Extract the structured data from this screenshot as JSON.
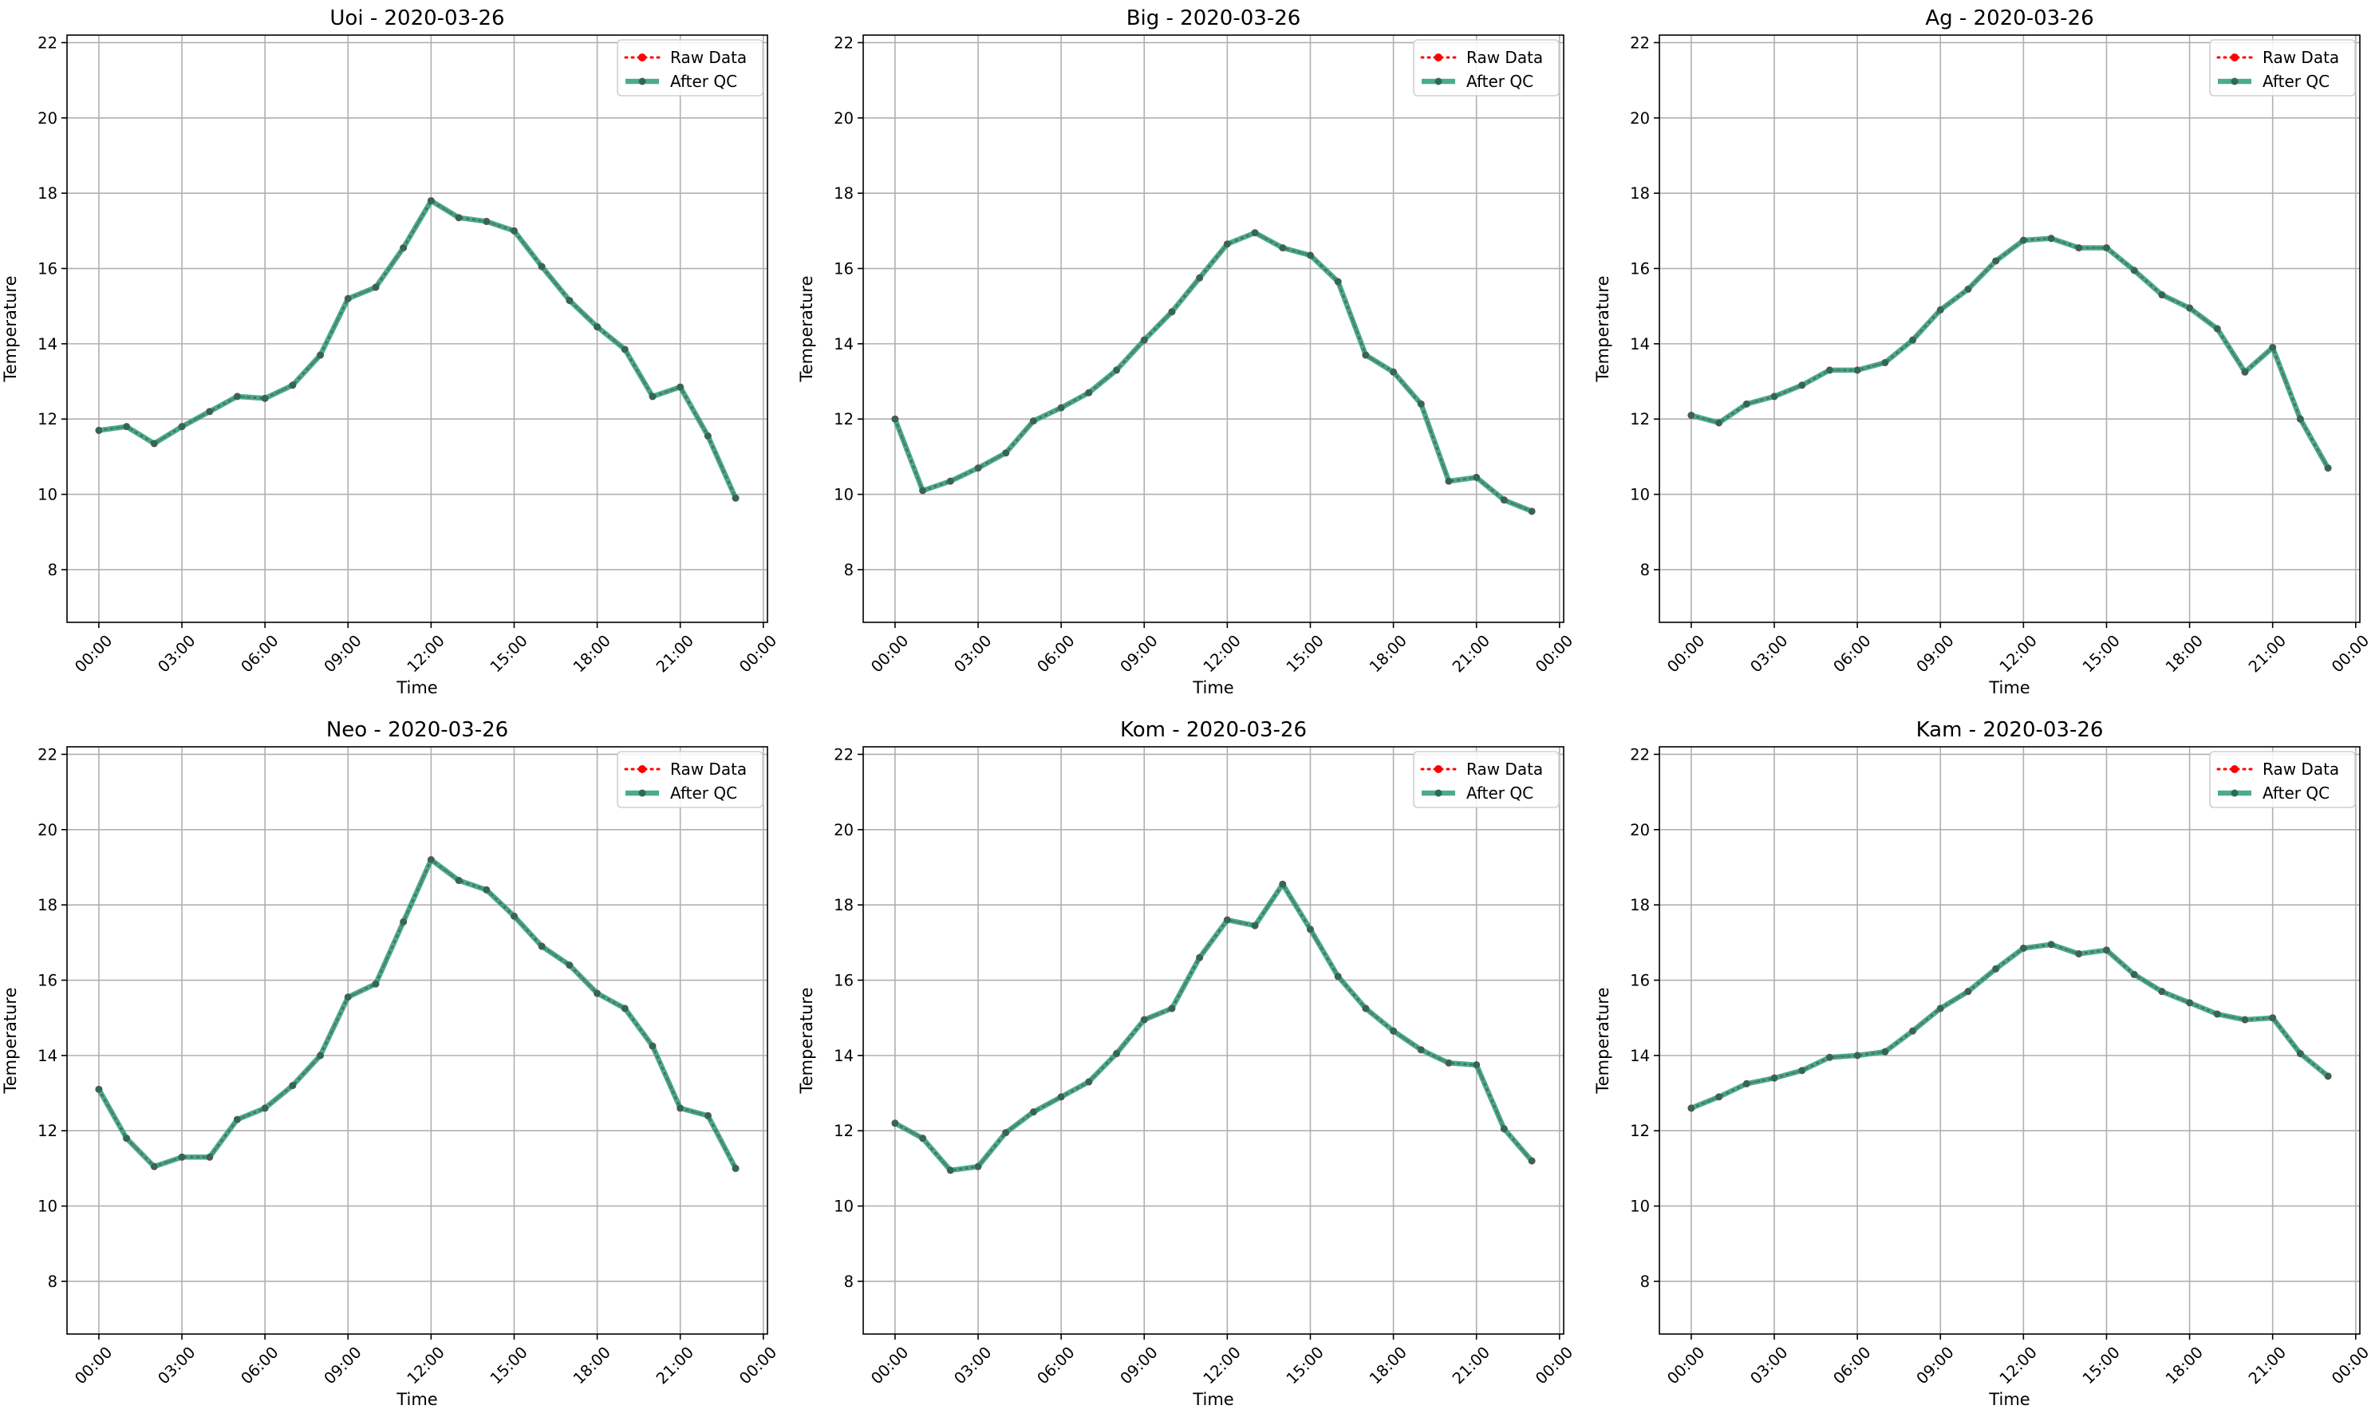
{
  "figure": {
    "colors": {
      "raw": "#ff0000",
      "qc": "#2a9d78",
      "qc_marker": "#2b6b55",
      "grid": "#b0b0b0",
      "axes": "#000000"
    }
  },
  "chart_data": [
    {
      "type": "line",
      "title": "Uoi - 2020-03-26",
      "xlabel": "Time",
      "ylabel": "Temperature",
      "ylim": [
        6.6,
        22.2
      ],
      "yticks": [
        8,
        10,
        12,
        14,
        16,
        18,
        20,
        22
      ],
      "xlim": [
        "2020-03-25 22:51",
        "2020-03-27 00:09"
      ],
      "xticks": [
        "00:00",
        "03:00",
        "06:00",
        "09:00",
        "12:00",
        "15:00",
        "18:00",
        "21:00",
        "00:00"
      ],
      "grid": true,
      "legend": "top-right",
      "x": [
        "00:00",
        "01:00",
        "02:00",
        "03:00",
        "04:00",
        "05:00",
        "06:00",
        "07:00",
        "08:00",
        "09:00",
        "10:00",
        "11:00",
        "12:00",
        "13:00",
        "14:00",
        "15:00",
        "16:00",
        "17:00",
        "18:00",
        "19:00",
        "20:00",
        "21:00",
        "22:00",
        "23:00"
      ],
      "series": [
        {
          "name": "Raw Data",
          "values": [
            11.7,
            11.8,
            11.35,
            11.8,
            12.2,
            12.6,
            12.55,
            12.9,
            13.7,
            15.2,
            15.5,
            16.55,
            17.8,
            17.35,
            17.25,
            17.0,
            16.05,
            15.15,
            14.45,
            13.85,
            12.6,
            12.85,
            11.55,
            9.9
          ]
        },
        {
          "name": "After QC",
          "values": [
            11.7,
            11.8,
            11.35,
            11.8,
            12.2,
            12.6,
            12.55,
            12.9,
            13.7,
            15.2,
            15.5,
            16.55,
            17.8,
            17.35,
            17.25,
            17.0,
            16.05,
            15.15,
            14.45,
            13.85,
            12.6,
            12.85,
            11.55,
            9.9
          ]
        }
      ]
    },
    {
      "type": "line",
      "title": "Big - 2020-03-26",
      "xlabel": "Time",
      "ylabel": "Temperature",
      "ylim": [
        6.6,
        22.2
      ],
      "yticks": [
        8,
        10,
        12,
        14,
        16,
        18,
        20,
        22
      ],
      "xlim": [
        "2020-03-25 22:51",
        "2020-03-27 00:09"
      ],
      "xticks": [
        "00:00",
        "03:00",
        "06:00",
        "09:00",
        "12:00",
        "15:00",
        "18:00",
        "21:00",
        "00:00"
      ],
      "grid": true,
      "legend": "top-right",
      "x": [
        "00:00",
        "01:00",
        "02:00",
        "03:00",
        "04:00",
        "05:00",
        "06:00",
        "07:00",
        "08:00",
        "09:00",
        "10:00",
        "11:00",
        "12:00",
        "13:00",
        "14:00",
        "15:00",
        "16:00",
        "17:00",
        "18:00",
        "19:00",
        "20:00",
        "21:00",
        "22:00",
        "23:00"
      ],
      "series": [
        {
          "name": "Raw Data",
          "values": [
            12.0,
            10.1,
            10.35,
            10.7,
            11.1,
            11.95,
            12.3,
            12.7,
            13.3,
            14.1,
            14.85,
            15.75,
            16.65,
            16.95,
            16.55,
            16.35,
            15.65,
            13.7,
            13.25,
            12.4,
            10.35,
            10.45,
            9.85,
            9.55
          ]
        },
        {
          "name": "After QC",
          "values": [
            12.0,
            10.1,
            10.35,
            10.7,
            11.1,
            11.95,
            12.3,
            12.7,
            13.3,
            14.1,
            14.85,
            15.75,
            16.65,
            16.95,
            16.55,
            16.35,
            15.65,
            13.7,
            13.25,
            12.4,
            10.35,
            10.45,
            9.85,
            9.55
          ]
        }
      ]
    },
    {
      "type": "line",
      "title": "Ag - 2020-03-26",
      "xlabel": "Time",
      "ylabel": "Temperature",
      "ylim": [
        6.6,
        22.2
      ],
      "yticks": [
        8,
        10,
        12,
        14,
        16,
        18,
        20,
        22
      ],
      "xlim": [
        "2020-03-25 22:51",
        "2020-03-27 00:09"
      ],
      "xticks": [
        "00:00",
        "03:00",
        "06:00",
        "09:00",
        "12:00",
        "15:00",
        "18:00",
        "21:00",
        "00:00"
      ],
      "grid": true,
      "legend": "top-right",
      "x": [
        "00:00",
        "01:00",
        "02:00",
        "03:00",
        "04:00",
        "05:00",
        "06:00",
        "07:00",
        "08:00",
        "09:00",
        "10:00",
        "11:00",
        "12:00",
        "13:00",
        "14:00",
        "15:00",
        "16:00",
        "17:00",
        "18:00",
        "19:00",
        "20:00",
        "21:00",
        "22:00",
        "23:00"
      ],
      "series": [
        {
          "name": "Raw Data",
          "values": [
            12.1,
            11.9,
            12.4,
            12.6,
            12.9,
            13.3,
            13.3,
            13.5,
            14.1,
            14.9,
            15.45,
            16.2,
            16.75,
            16.8,
            16.55,
            16.55,
            15.95,
            15.3,
            14.95,
            14.4,
            13.25,
            13.9,
            12.0,
            10.7
          ]
        },
        {
          "name": "After QC",
          "values": [
            12.1,
            11.9,
            12.4,
            12.6,
            12.9,
            13.3,
            13.3,
            13.5,
            14.1,
            14.9,
            15.45,
            16.2,
            16.75,
            16.8,
            16.55,
            16.55,
            15.95,
            15.3,
            14.95,
            14.4,
            13.25,
            13.9,
            12.0,
            10.7
          ]
        }
      ]
    },
    {
      "type": "line",
      "title": "Neo - 2020-03-26",
      "xlabel": "Time",
      "ylabel": "Temperature",
      "ylim": [
        6.6,
        22.2
      ],
      "yticks": [
        8,
        10,
        12,
        14,
        16,
        18,
        20,
        22
      ],
      "xlim": [
        "2020-03-25 22:51",
        "2020-03-27 00:09"
      ],
      "xticks": [
        "00:00",
        "03:00",
        "06:00",
        "09:00",
        "12:00",
        "15:00",
        "18:00",
        "21:00",
        "00:00"
      ],
      "grid": true,
      "legend": "top-right",
      "x": [
        "00:00",
        "01:00",
        "02:00",
        "03:00",
        "04:00",
        "05:00",
        "06:00",
        "07:00",
        "08:00",
        "09:00",
        "10:00",
        "11:00",
        "12:00",
        "13:00",
        "14:00",
        "15:00",
        "16:00",
        "17:00",
        "18:00",
        "19:00",
        "20:00",
        "21:00",
        "22:00",
        "23:00"
      ],
      "series": [
        {
          "name": "Raw Data",
          "values": [
            13.1,
            11.8,
            11.05,
            11.3,
            11.3,
            12.3,
            12.6,
            13.2,
            14.0,
            15.55,
            15.9,
            17.55,
            19.2,
            18.65,
            18.4,
            17.7,
            16.9,
            16.4,
            15.65,
            15.25,
            14.25,
            12.6,
            12.4,
            11.0
          ]
        },
        {
          "name": "After QC",
          "values": [
            13.1,
            11.8,
            11.05,
            11.3,
            11.3,
            12.3,
            12.6,
            13.2,
            14.0,
            15.55,
            15.9,
            17.55,
            19.2,
            18.65,
            18.4,
            17.7,
            16.9,
            16.4,
            15.65,
            15.25,
            14.25,
            12.6,
            12.4,
            11.0
          ]
        }
      ]
    },
    {
      "type": "line",
      "title": "Kom - 2020-03-26",
      "xlabel": "Time",
      "ylabel": "Temperature",
      "ylim": [
        6.6,
        22.2
      ],
      "yticks": [
        8,
        10,
        12,
        14,
        16,
        18,
        20,
        22
      ],
      "xlim": [
        "2020-03-25 22:51",
        "2020-03-27 00:09"
      ],
      "xticks": [
        "00:00",
        "03:00",
        "06:00",
        "09:00",
        "12:00",
        "15:00",
        "18:00",
        "21:00",
        "00:00"
      ],
      "grid": true,
      "legend": "top-right",
      "x": [
        "00:00",
        "01:00",
        "02:00",
        "03:00",
        "04:00",
        "05:00",
        "06:00",
        "07:00",
        "08:00",
        "09:00",
        "10:00",
        "11:00",
        "12:00",
        "13:00",
        "14:00",
        "15:00",
        "16:00",
        "17:00",
        "18:00",
        "19:00",
        "20:00",
        "21:00",
        "22:00",
        "23:00"
      ],
      "series": [
        {
          "name": "Raw Data",
          "values": [
            12.2,
            11.8,
            10.95,
            11.05,
            11.95,
            12.5,
            12.9,
            13.3,
            14.05,
            14.95,
            15.25,
            16.6,
            17.6,
            17.45,
            18.55,
            17.35,
            16.1,
            15.25,
            14.65,
            14.15,
            13.8,
            13.75,
            12.05,
            11.2
          ]
        },
        {
          "name": "After QC",
          "values": [
            12.2,
            11.8,
            10.95,
            11.05,
            11.95,
            12.5,
            12.9,
            13.3,
            14.05,
            14.95,
            15.25,
            16.6,
            17.6,
            17.45,
            18.55,
            17.35,
            16.1,
            15.25,
            14.65,
            14.15,
            13.8,
            13.75,
            12.05,
            11.2
          ]
        }
      ]
    },
    {
      "type": "line",
      "title": "Kam - 2020-03-26",
      "xlabel": "Time",
      "ylabel": "Temperature",
      "ylim": [
        6.6,
        22.2
      ],
      "yticks": [
        8,
        10,
        12,
        14,
        16,
        18,
        20,
        22
      ],
      "xlim": [
        "2020-03-25 22:51",
        "2020-03-27 00:09"
      ],
      "xticks": [
        "00:00",
        "03:00",
        "06:00",
        "09:00",
        "12:00",
        "15:00",
        "18:00",
        "21:00",
        "00:00"
      ],
      "grid": true,
      "legend": "top-right",
      "x": [
        "00:00",
        "01:00",
        "02:00",
        "03:00",
        "04:00",
        "05:00",
        "06:00",
        "07:00",
        "08:00",
        "09:00",
        "10:00",
        "11:00",
        "12:00",
        "13:00",
        "14:00",
        "15:00",
        "16:00",
        "17:00",
        "18:00",
        "19:00",
        "20:00",
        "21:00",
        "22:00",
        "23:00"
      ],
      "series": [
        {
          "name": "Raw Data",
          "values": [
            12.6,
            12.9,
            13.25,
            13.4,
            13.6,
            13.95,
            14.0,
            14.1,
            14.65,
            15.25,
            15.7,
            16.3,
            16.85,
            16.95,
            16.7,
            16.8,
            16.15,
            15.7,
            15.4,
            15.1,
            14.95,
            15.0,
            14.05,
            13.45
          ]
        },
        {
          "name": "After QC",
          "values": [
            12.6,
            12.9,
            13.25,
            13.4,
            13.6,
            13.95,
            14.0,
            14.1,
            14.65,
            15.25,
            15.7,
            16.3,
            16.85,
            16.95,
            16.7,
            16.8,
            16.15,
            15.7,
            15.4,
            15.1,
            14.95,
            15.0,
            14.05,
            13.45
          ]
        }
      ]
    }
  ]
}
